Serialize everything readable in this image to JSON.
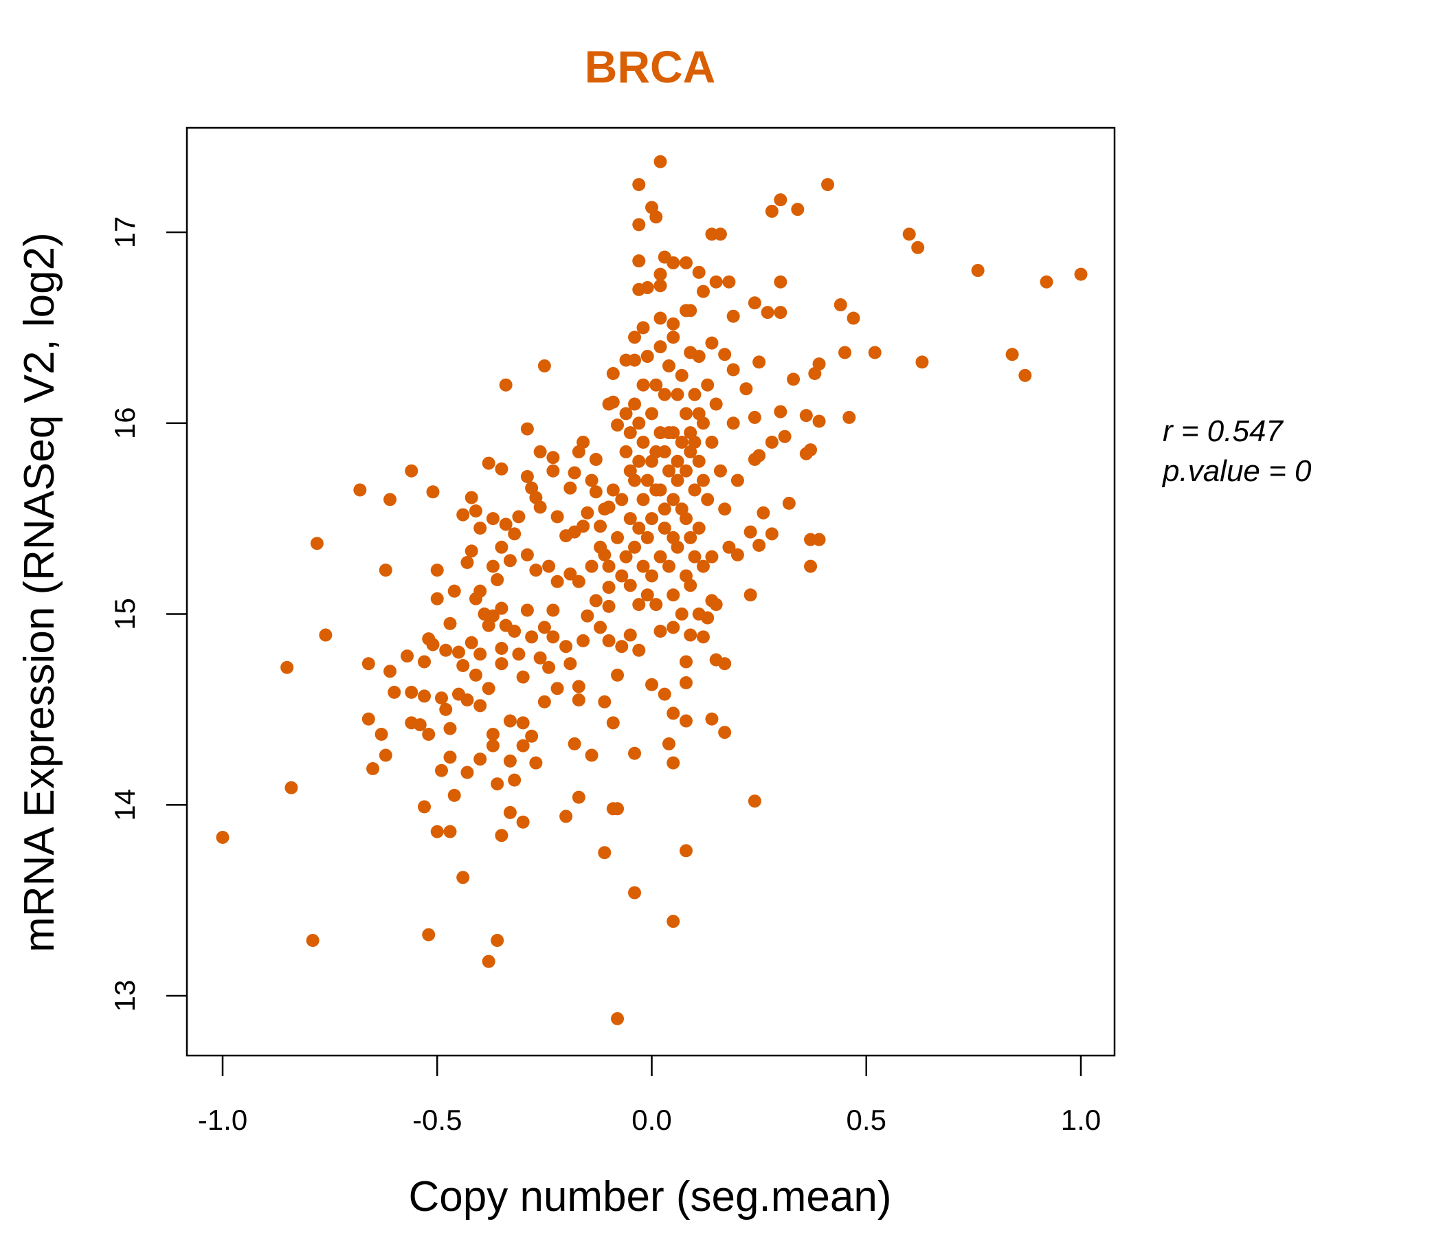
{
  "chart_data": {
    "type": "scatter",
    "title": "BRCA",
    "xlabel": "Copy number (seg.mean)",
    "ylabel": "mRNA Expression (RNASeq V2, log2)",
    "xlim": [
      -1.08,
      1.08
    ],
    "ylim": [
      12.7,
      17.55
    ],
    "xticks": [
      -1.0,
      -0.5,
      0.0,
      0.5,
      1.0
    ],
    "xtick_labels": [
      "-1.0",
      "-0.5",
      "0.0",
      "0.5",
      "1.0"
    ],
    "yticks": [
      13,
      14,
      15,
      16,
      17
    ],
    "ytick_labels": [
      "13",
      "14",
      "15",
      "16",
      "17"
    ],
    "grid": false,
    "color": "#D95F02",
    "annotations": {
      "r": "r = 0.547",
      "p": "p.value = 0"
    },
    "points": [
      [
        -1.0,
        13.83
      ],
      [
        -0.85,
        14.72
      ],
      [
        -0.84,
        14.09
      ],
      [
        -0.79,
        13.29
      ],
      [
        -0.78,
        15.37
      ],
      [
        -0.76,
        14.89
      ],
      [
        -0.68,
        15.65
      ],
      [
        -0.66,
        14.74
      ],
      [
        -0.66,
        14.45
      ],
      [
        -0.65,
        14.19
      ],
      [
        -0.63,
        14.37
      ],
      [
        -0.62,
        14.26
      ],
      [
        -0.62,
        15.23
      ],
      [
        -0.61,
        15.6
      ],
      [
        -0.61,
        14.7
      ],
      [
        -0.6,
        14.59
      ],
      [
        -0.57,
        14.78
      ],
      [
        -0.56,
        14.43
      ],
      [
        -0.56,
        15.75
      ],
      [
        -0.56,
        14.59
      ],
      [
        -0.53,
        13.99
      ],
      [
        -0.53,
        14.75
      ],
      [
        -0.52,
        13.32
      ],
      [
        -0.51,
        15.64
      ],
      [
        -0.5,
        15.23
      ],
      [
        -0.5,
        15.08
      ],
      [
        -0.5,
        13.86
      ],
      [
        -0.47,
        13.86
      ],
      [
        -0.44,
        13.62
      ],
      [
        -0.46,
        14.05
      ],
      [
        -0.47,
        14.25
      ],
      [
        -0.49,
        14.18
      ],
      [
        -0.46,
        15.12
      ],
      [
        -0.44,
        15.52
      ],
      [
        -0.42,
        15.61
      ],
      [
        -0.38,
        15.79
      ],
      [
        -0.35,
        15.76
      ],
      [
        -0.38,
        13.18
      ],
      [
        -0.36,
        13.29
      ],
      [
        -0.35,
        13.84
      ],
      [
        -0.33,
        13.96
      ],
      [
        -0.3,
        13.91
      ],
      [
        -0.34,
        16.2
      ],
      [
        -0.29,
        15.97
      ],
      [
        -0.25,
        16.3
      ],
      [
        -0.2,
        13.94
      ],
      [
        -0.17,
        14.04
      ],
      [
        -0.11,
        13.75
      ],
      [
        -0.09,
        13.98
      ],
      [
        -0.08,
        13.98
      ],
      [
        -0.08,
        12.88
      ],
      [
        -0.04,
        13.54
      ],
      [
        0.05,
        13.39
      ],
      [
        0.08,
        13.76
      ],
      [
        -0.04,
        14.27
      ],
      [
        0.05,
        14.22
      ],
      [
        0.14,
        14.45
      ],
      [
        0.17,
        14.38
      ],
      [
        0.24,
        14.02
      ],
      [
        -0.03,
        17.25
      ],
      [
        0.02,
        17.37
      ],
      [
        0.0,
        17.13
      ],
      [
        0.01,
        17.08
      ],
      [
        -0.03,
        17.04
      ],
      [
        -0.03,
        16.85
      ],
      [
        0.03,
        16.87
      ],
      [
        0.05,
        16.84
      ],
      [
        0.08,
        16.84
      ],
      [
        0.02,
        16.78
      ],
      [
        0.02,
        16.72
      ],
      [
        -0.03,
        16.7
      ],
      [
        -0.01,
        16.71
      ],
      [
        0.11,
        16.79
      ],
      [
        0.14,
        16.99
      ],
      [
        0.16,
        16.99
      ],
      [
        0.18,
        16.74
      ],
      [
        0.15,
        16.74
      ],
      [
        0.12,
        16.69
      ],
      [
        0.08,
        16.59
      ],
      [
        0.09,
        16.59
      ],
      [
        0.19,
        16.56
      ],
      [
        0.28,
        17.11
      ],
      [
        0.3,
        17.17
      ],
      [
        0.34,
        17.12
      ],
      [
        0.41,
        17.25
      ],
      [
        0.3,
        16.74
      ],
      [
        0.24,
        16.63
      ],
      [
        0.27,
        16.58
      ],
      [
        0.3,
        16.58
      ],
      [
        0.44,
        16.62
      ],
      [
        0.47,
        16.55
      ],
      [
        0.45,
        16.37
      ],
      [
        0.52,
        16.37
      ],
      [
        0.63,
        16.32
      ],
      [
        0.6,
        16.99
      ],
      [
        0.62,
        16.92
      ],
      [
        0.76,
        16.8
      ],
      [
        0.92,
        16.74
      ],
      [
        1.0,
        16.78
      ],
      [
        0.84,
        16.36
      ],
      [
        0.87,
        16.25
      ],
      [
        0.46,
        16.03
      ],
      [
        0.39,
        16.31
      ],
      [
        0.38,
        16.26
      ],
      [
        0.39,
        16.01
      ],
      [
        0.36,
        16.04
      ],
      [
        0.37,
        15.86
      ],
      [
        0.36,
        15.84
      ],
      [
        0.37,
        15.39
      ],
      [
        0.39,
        15.39
      ],
      [
        0.37,
        15.25
      ],
      [
        0.32,
        15.58
      ],
      [
        0.28,
        15.42
      ],
      [
        0.25,
        15.36
      ],
      [
        0.23,
        15.1
      ],
      [
        0.26,
        15.53
      ],
      [
        0.33,
        16.23
      ],
      [
        0.31,
        15.93
      ],
      [
        0.3,
        16.06
      ],
      [
        0.28,
        15.9
      ],
      [
        0.25,
        15.83
      ],
      [
        0.24,
        15.81
      ],
      [
        0.24,
        16.03
      ],
      [
        0.22,
        16.18
      ],
      [
        0.25,
        16.32
      ],
      [
        0.23,
        15.43
      ],
      [
        0.2,
        15.31
      ],
      [
        0.17,
        14.74
      ],
      [
        0.15,
        14.76
      ],
      [
        0.14,
        15.07
      ],
      [
        0.08,
        14.64
      ],
      [
        0.08,
        14.75
      ],
      [
        0.05,
        14.48
      ],
      [
        0.08,
        14.44
      ],
      [
        0.03,
        14.58
      ],
      [
        0.0,
        14.63
      ],
      [
        0.04,
        14.32
      ],
      [
        -0.08,
        14.68
      ],
      [
        -0.11,
        14.54
      ],
      [
        -0.09,
        14.43
      ],
      [
        -0.14,
        14.26
      ],
      [
        -0.18,
        14.32
      ],
      [
        -0.17,
        14.55
      ],
      [
        -0.22,
        14.61
      ],
      [
        -0.25,
        14.54
      ],
      [
        -0.27,
        14.22
      ],
      [
        -0.28,
        14.36
      ],
      [
        -0.3,
        14.31
      ],
      [
        -0.3,
        14.43
      ],
      [
        -0.33,
        14.44
      ],
      [
        -0.33,
        14.23
      ],
      [
        -0.32,
        14.13
      ],
      [
        -0.37,
        14.37
      ],
      [
        -0.37,
        14.31
      ],
      [
        -0.36,
        14.11
      ],
      [
        -0.4,
        14.24
      ],
      [
        -0.43,
        14.17
      ],
      [
        -0.47,
        14.4
      ],
      [
        -0.48,
        14.5
      ],
      [
        -0.52,
        14.37
      ],
      [
        -0.54,
        14.42
      ],
      [
        -0.49,
        14.56
      ],
      [
        -0.53,
        14.57
      ],
      [
        -0.52,
        14.87
      ],
      [
        -0.51,
        14.84
      ],
      [
        -0.48,
        14.81
      ],
      [
        -0.45,
        14.8
      ],
      [
        -0.42,
        14.85
      ],
      [
        -0.47,
        14.95
      ],
      [
        -0.44,
        14.73
      ],
      [
        -0.45,
        14.58
      ],
      [
        -0.43,
        14.55
      ],
      [
        -0.41,
        14.68
      ],
      [
        -0.4,
        14.52
      ],
      [
        -0.38,
        14.61
      ],
      [
        -0.35,
        14.74
      ],
      [
        -0.35,
        14.82
      ],
      [
        -0.4,
        14.79
      ],
      [
        -0.38,
        14.94
      ],
      [
        -0.41,
        15.08
      ],
      [
        -0.4,
        15.12
      ],
      [
        -0.39,
        15.0
      ],
      [
        -0.37,
        14.99
      ],
      [
        -0.35,
        15.03
      ],
      [
        -0.34,
        14.94
      ],
      [
        -0.32,
        14.91
      ],
      [
        -0.31,
        14.79
      ],
      [
        -0.3,
        14.67
      ],
      [
        -0.28,
        14.88
      ],
      [
        -0.29,
        15.02
      ],
      [
        -0.26,
        14.77
      ],
      [
        -0.25,
        14.93
      ],
      [
        -0.23,
        14.88
      ],
      [
        -0.23,
        15.02
      ],
      [
        -0.24,
        14.72
      ],
      [
        -0.2,
        14.83
      ],
      [
        -0.19,
        14.74
      ],
      [
        -0.17,
        14.62
      ],
      [
        -0.16,
        14.86
      ],
      [
        -0.15,
        14.99
      ],
      [
        -0.12,
        14.93
      ],
      [
        -0.1,
        14.86
      ],
      [
        -0.07,
        14.83
      ],
      [
        -0.05,
        14.89
      ],
      [
        -0.03,
        14.81
      ],
      [
        0.02,
        14.91
      ],
      [
        0.05,
        14.93
      ],
      [
        0.09,
        14.89
      ],
      [
        0.12,
        14.88
      ],
      [
        0.13,
        14.98
      ],
      [
        0.11,
        15.0
      ],
      [
        -0.41,
        15.54
      ],
      [
        -0.4,
        15.45
      ],
      [
        -0.37,
        15.5
      ],
      [
        -0.42,
        15.33
      ],
      [
        -0.43,
        15.27
      ],
      [
        -0.37,
        15.25
      ],
      [
        -0.36,
        15.18
      ],
      [
        -0.35,
        15.35
      ],
      [
        -0.33,
        15.28
      ],
      [
        -0.34,
        15.47
      ],
      [
        -0.32,
        15.42
      ],
      [
        -0.31,
        15.51
      ],
      [
        -0.29,
        15.72
      ],
      [
        -0.28,
        15.66
      ],
      [
        -0.27,
        15.61
      ],
      [
        -0.26,
        15.56
      ],
      [
        -0.26,
        15.85
      ],
      [
        -0.23,
        15.82
      ],
      [
        -0.23,
        15.75
      ],
      [
        -0.22,
        15.51
      ],
      [
        -0.19,
        15.66
      ],
      [
        -0.18,
        15.74
      ],
      [
        -0.17,
        15.85
      ],
      [
        -0.16,
        15.9
      ],
      [
        -0.13,
        15.81
      ],
      [
        -0.14,
        15.7
      ],
      [
        -0.13,
        15.64
      ],
      [
        -0.15,
        15.53
      ],
      [
        -0.12,
        15.46
      ],
      [
        -0.1,
        15.56
      ],
      [
        -0.16,
        15.46
      ],
      [
        -0.18,
        15.43
      ],
      [
        -0.2,
        15.41
      ],
      [
        -0.29,
        15.31
      ],
      [
        -0.27,
        15.23
      ],
      [
        -0.24,
        15.25
      ],
      [
        -0.22,
        15.17
      ],
      [
        -0.19,
        15.21
      ],
      [
        -0.17,
        15.17
      ],
      [
        -0.14,
        15.25
      ],
      [
        -0.11,
        15.31
      ],
      [
        -0.1,
        15.14
      ],
      [
        -0.13,
        15.07
      ],
      [
        -0.1,
        15.04
      ],
      [
        -0.09,
        16.11
      ],
      [
        -0.1,
        16.1
      ],
      [
        -0.08,
        15.99
      ],
      [
        -0.09,
        16.26
      ],
      [
        -0.06,
        16.33
      ],
      [
        -0.04,
        16.33
      ],
      [
        -0.04,
        16.45
      ],
      [
        -0.02,
        16.5
      ],
      [
        0.02,
        16.55
      ],
      [
        0.05,
        16.52
      ],
      [
        0.05,
        16.45
      ],
      [
        0.09,
        16.37
      ],
      [
        0.11,
        16.35
      ],
      [
        0.14,
        16.42
      ],
      [
        0.17,
        16.36
      ],
      [
        0.19,
        16.28
      ],
      [
        -0.05,
        15.95
      ],
      [
        -0.04,
        16.1
      ],
      [
        -0.03,
        15.8
      ],
      [
        -0.02,
        15.6
      ],
      [
        -0.01,
        15.4
      ],
      [
        0.0,
        15.2
      ],
      [
        0.01,
        15.05
      ],
      [
        0.02,
        15.3
      ],
      [
        0.03,
        15.55
      ],
      [
        0.04,
        15.75
      ],
      [
        0.05,
        15.95
      ],
      [
        0.06,
        16.15
      ],
      [
        0.07,
        16.25
      ],
      [
        0.08,
        16.05
      ],
      [
        0.09,
        15.85
      ],
      [
        0.1,
        15.65
      ],
      [
        0.11,
        15.45
      ],
      [
        0.12,
        15.25
      ],
      [
        0.13,
        15.6
      ],
      [
        0.14,
        15.9
      ],
      [
        -0.06,
        15.3
      ],
      [
        -0.05,
        15.5
      ],
      [
        -0.04,
        15.7
      ],
      [
        -0.03,
        16.0
      ],
      [
        -0.02,
        16.2
      ],
      [
        -0.01,
        16.35
      ],
      [
        0.0,
        16.05
      ],
      [
        0.01,
        15.85
      ],
      [
        0.02,
        15.65
      ],
      [
        0.03,
        15.45
      ],
      [
        0.04,
        15.25
      ],
      [
        0.05,
        15.1
      ],
      [
        0.06,
        15.35
      ],
      [
        0.07,
        15.55
      ],
      [
        0.08,
        15.75
      ],
      [
        0.09,
        15.95
      ],
      [
        0.1,
        16.15
      ],
      [
        0.11,
        15.8
      ],
      [
        0.12,
        16.0
      ],
      [
        0.13,
        16.2
      ],
      [
        -0.07,
        15.6
      ],
      [
        -0.06,
        15.85
      ],
      [
        -0.05,
        15.15
      ],
      [
        -0.04,
        15.35
      ],
      [
        -0.03,
        15.05
      ],
      [
        -0.02,
        15.9
      ],
      [
        -0.01,
        15.7
      ],
      [
        0.0,
        15.5
      ],
      [
        0.01,
        15.65
      ],
      [
        0.02,
        15.95
      ],
      [
        0.03,
        16.15
      ],
      [
        0.04,
        16.3
      ],
      [
        0.05,
        15.6
      ],
      [
        0.06,
        15.8
      ],
      [
        0.07,
        15.0
      ],
      [
        0.08,
        15.2
      ],
      [
        0.09,
        15.4
      ],
      [
        0.1,
        15.3
      ],
      [
        0.11,
        16.05
      ],
      [
        0.12,
        15.7
      ],
      [
        -0.08,
        15.4
      ],
      [
        -0.07,
        15.2
      ],
      [
        -0.06,
        16.05
      ],
      [
        -0.05,
        15.75
      ],
      [
        -0.03,
        15.45
      ],
      [
        -0.02,
        15.25
      ],
      [
        -0.01,
        15.1
      ],
      [
        0.0,
        15.8
      ],
      [
        0.01,
        16.2
      ],
      [
        0.02,
        16.4
      ],
      [
        0.03,
        15.85
      ],
      [
        0.04,
        15.95
      ],
      [
        0.05,
        15.4
      ],
      [
        0.06,
        15.7
      ],
      [
        0.07,
        15.9
      ],
      [
        0.08,
        15.5
      ],
      [
        0.09,
        15.15
      ],
      [
        0.1,
        15.9
      ],
      [
        0.15,
        16.1
      ],
      [
        0.16,
        15.75
      ],
      [
        0.17,
        15.55
      ],
      [
        0.18,
        15.35
      ],
      [
        0.19,
        16.0
      ],
      [
        0.2,
        15.7
      ],
      [
        0.14,
        15.3
      ],
      [
        0.15,
        15.05
      ],
      [
        -0.09,
        15.65
      ],
      [
        -0.1,
        15.25
      ],
      [
        -0.11,
        15.55
      ],
      [
        -0.12,
        15.35
      ]
    ]
  }
}
